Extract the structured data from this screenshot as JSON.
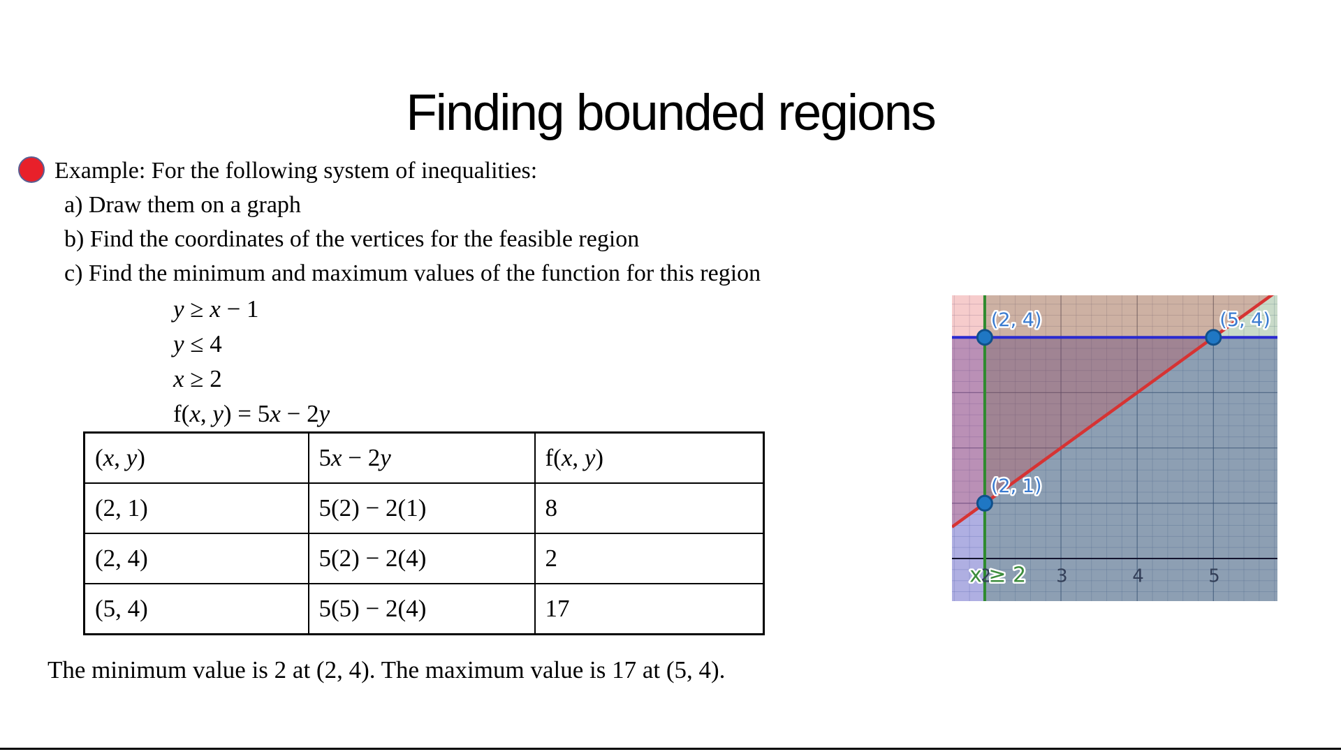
{
  "slide": {
    "title": "Finding bounded regions",
    "bullet_color": "#e8202a",
    "bullet": {
      "lead": "Example: For the following system of inequalities:",
      "items": [
        "a) Draw them on a graph",
        "b) Find the coordinates of the vertices for the feasible region",
        "c) Find the minimum and maximum values of the function for this region"
      ]
    },
    "system": [
      "y ≥ x − 1",
      "y ≤ 4",
      "x ≥ 2",
      "f(x, y) = 5x − 2y"
    ],
    "table": {
      "headers": [
        "(x, y)",
        "5x − 2y",
        "f(x, y)"
      ],
      "rows": [
        [
          "(2, 1)",
          "5(2) − 2(1)",
          "8"
        ],
        [
          "(2, 4)",
          "5(2) − 2(4)",
          "2"
        ],
        [
          "(5, 4)",
          "5(5) − 2(4)",
          "17"
        ]
      ]
    },
    "conclusion": "The minimum value is 2 at (2, 4). The maximum value is 17 at (5, 4)."
  },
  "chart_data": {
    "type": "region-plot",
    "title": "",
    "x_range": [
      1.57,
      5.84
    ],
    "y_range": [
      -0.77,
      4.76
    ],
    "x_ticks": [
      2,
      3,
      4,
      5
    ],
    "minor_step": 0.2,
    "grid_major_color": "#4a5b75",
    "grid_minor_color": "#6f7fa5",
    "axis_color": "#14142e",
    "inequalities": [
      {
        "label": "y ≤ 4",
        "type": "hline_below",
        "value": 4,
        "line_color": "#2a2ad0",
        "line_width": 4,
        "fill": "rgba(45,45,180,0.38)"
      },
      {
        "label": "x ≥ 2",
        "type": "vline_right",
        "value": 2,
        "line_color": "#2e8b2e",
        "line_width": 4,
        "fill": "rgba(40,110,40,0.25)"
      },
      {
        "label": "y ≥ x − 1",
        "type": "diag_above",
        "slope": 1,
        "intercept": -1,
        "line_color": "#d63333",
        "line_width": 4.5,
        "fill": "rgba(220,50,50,0.25)"
      }
    ],
    "vertices": [
      {
        "x": 2,
        "y": 4,
        "label": "(2, 4)"
      },
      {
        "x": 5,
        "y": 4,
        "label": "(5, 4)"
      },
      {
        "x": 2,
        "y": 1,
        "label": "(2, 1)"
      }
    ],
    "vertex_point_fill": "#1f77c4",
    "vertex_point_stroke": "#11508a",
    "vertex_label_color": "#3a7bd0",
    "tick_label_color": "#333f58",
    "annotation": {
      "text": "x ≥ 2",
      "x": 1.8,
      "y": -0.42,
      "color": "#3c8c3c"
    }
  }
}
